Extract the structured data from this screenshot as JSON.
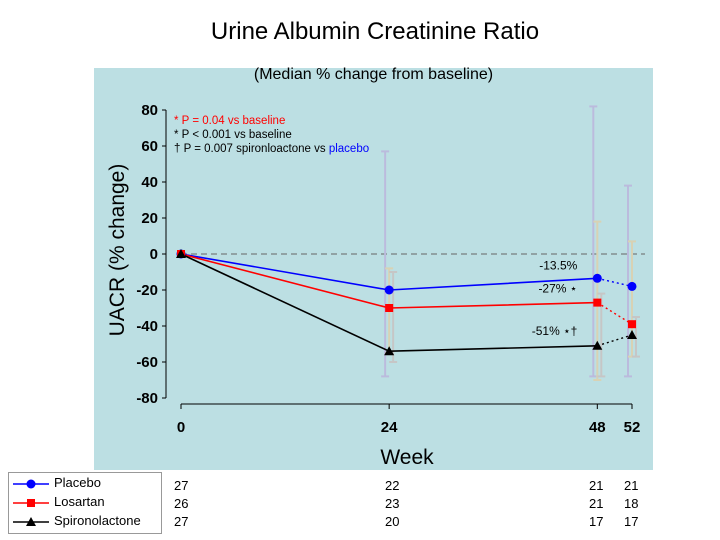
{
  "title": "Urine Albumin Creatinine Ratio",
  "chart_data": {
    "type": "line",
    "title": "Urine Albumin Creatinine Ratio",
    "subtitle": "(Median % change from baseline)",
    "xlabel": "Week",
    "ylabel": "UACR (% change)",
    "x_ticks": [
      0,
      24,
      48,
      52
    ],
    "y_ticks": [
      80,
      60,
      40,
      20,
      0,
      -20,
      -40,
      -60,
      -80
    ],
    "ylim": [
      -80,
      80
    ],
    "xlim": [
      0,
      52
    ],
    "reference_line": 0,
    "series": [
      {
        "name": "Placebo",
        "color": "#0000ff",
        "marker": "circle",
        "x": [
          0,
          24,
          48,
          52
        ],
        "y": [
          0,
          -20,
          -13.5,
          -18
        ],
        "err_low": [
          0,
          -68,
          -68,
          -68
        ],
        "err_high": [
          0,
          57,
          82,
          38
        ]
      },
      {
        "name": "Losartan",
        "color": "#ff0000",
        "marker": "square",
        "x": [
          0,
          24,
          48,
          52
        ],
        "y": [
          0,
          -30,
          -27,
          -39
        ],
        "err_low": [
          0,
          -55,
          -70,
          -57
        ],
        "err_high": [
          0,
          -8,
          18,
          7
        ]
      },
      {
        "name": "Spironolactone",
        "color": "#000000",
        "marker": "triangle",
        "x": [
          0,
          24,
          48,
          52
        ],
        "y": [
          0,
          -54,
          -51,
          -45
        ],
        "err_low": [
          0,
          -60,
          -68,
          -57
        ],
        "err_high": [
          0,
          -10,
          -22,
          -35
        ]
      }
    ],
    "annotations": [
      {
        "text": "-13.5%",
        "x": 48,
        "y": -13.5,
        "color": "#000000"
      },
      {
        "text": "-27% ⋆",
        "x": 48,
        "y": -27,
        "color": "#000000"
      },
      {
        "text": "-51% ⋆†",
        "x": 48,
        "y": -51,
        "color": "#000000"
      }
    ],
    "footnotes": [
      {
        "text": "* P = 0.04  vs baseline",
        "color": "#ff0000"
      },
      {
        "text": "* P < 0.001 vs baseline",
        "color": "#000000"
      },
      {
        "parts": [
          {
            "text": "† P = 0.007 spironloactone vs ",
            "color": "#000000"
          },
          {
            "text": "placebo",
            "color": "#0000ff"
          }
        ]
      }
    ]
  },
  "legend": [
    {
      "label": "Placebo",
      "color": "#0000ff",
      "marker": "circle"
    },
    {
      "label": "Losartan",
      "color": "#ff0000",
      "marker": "square"
    },
    {
      "label": "Spironolactone",
      "color": "#000000",
      "marker": "triangle"
    }
  ],
  "n_table": {
    "weeks": [
      0,
      24,
      48,
      52
    ],
    "rows": [
      [
        "27",
        "22",
        "21",
        "21"
      ],
      [
        "26",
        "23",
        "21",
        "18"
      ],
      [
        "27",
        "20",
        "17",
        "17"
      ]
    ]
  }
}
